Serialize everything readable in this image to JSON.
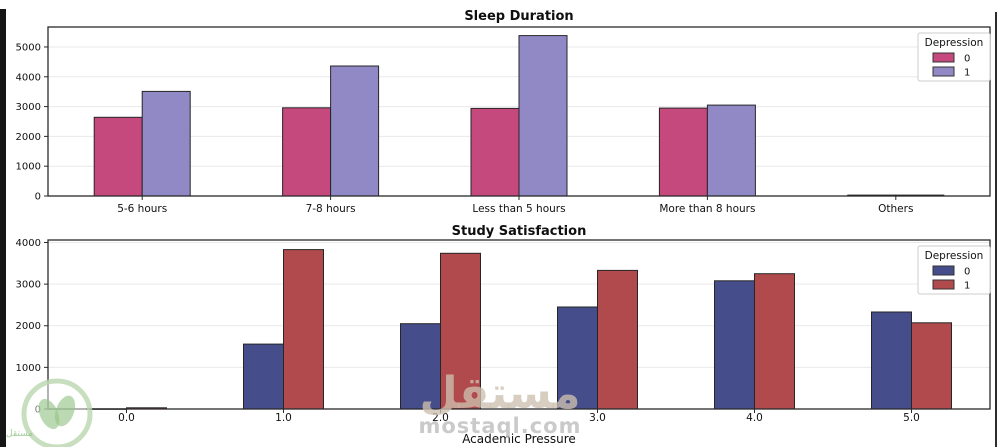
{
  "watermark": {
    "title_ar": "مستقل",
    "domain": "mostaql.com",
    "logo_text": "مستقل",
    "logo_icon": "leaf-circle-logo"
  },
  "frame": {
    "left_bar_color": "#161616",
    "right_line_color": "#2d2d2d"
  },
  "chart_data": [
    {
      "type": "bar",
      "title": "Sleep Duration",
      "xlabel": "",
      "ylabel": "",
      "categories": [
        "5-6 hours",
        "7-8 hours",
        "Less than 5 hours",
        "More than 8 hours",
        "Others"
      ],
      "series": [
        {
          "name": "0",
          "color": "#c5497c",
          "values": [
            2640,
            2960,
            2940,
            2950,
            30
          ]
        },
        {
          "name": "1",
          "color": "#9188c6",
          "values": [
            3510,
            4360,
            5380,
            3050,
            30
          ]
        }
      ],
      "ylim": [
        0,
        5670
      ],
      "yticks": [
        0,
        1000,
        2000,
        3000,
        4000,
        5000
      ],
      "legend_title": "Depression",
      "legend_position": "upper right",
      "grid": true
    },
    {
      "type": "bar",
      "title": "Study Satisfaction",
      "xlabel": "Academic Pressure",
      "ylabel": "",
      "categories": [
        "0.0",
        "1.0",
        "2.0",
        "3.0",
        "4.0",
        "5.0"
      ],
      "series": [
        {
          "name": "0",
          "color": "#454d8a",
          "values": [
            5,
            1560,
            2050,
            2450,
            3080,
            2330
          ]
        },
        {
          "name": "1",
          "color": "#b04a4c",
          "values": [
            30,
            3830,
            3740,
            3330,
            3250,
            2070
          ]
        }
      ],
      "ylim": [
        0,
        4060
      ],
      "yticks": [
        0,
        1000,
        2000,
        3000,
        4000
      ],
      "legend_title": "Depression",
      "legend_position": "upper right",
      "grid": true
    }
  ],
  "style": {
    "bar_edge_color": "#262626",
    "grid_color": "#e9e9e9",
    "spine_color": "#2a2a2a",
    "text_color": "#111111",
    "legend_border_color": "#cccccc"
  }
}
